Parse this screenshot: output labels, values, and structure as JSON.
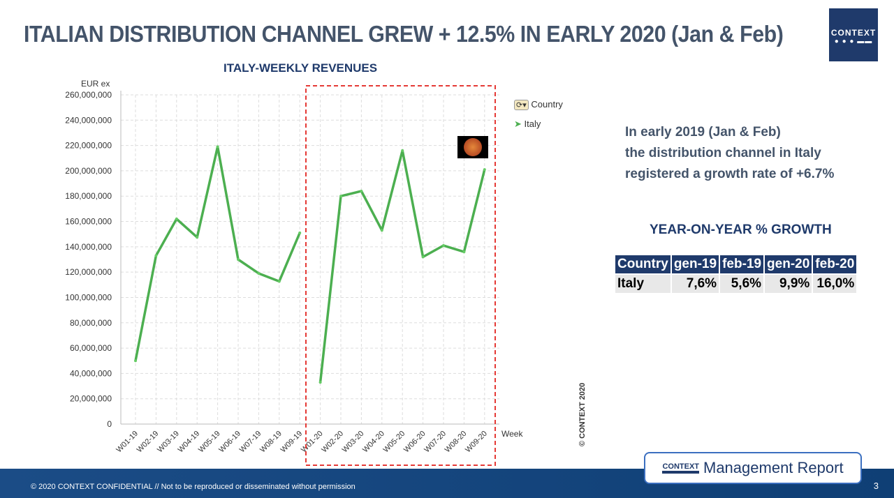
{
  "title": "ITALIAN DISTRIBUTION CHANNEL GREW + 12.5% IN EARLY 2020 (Jan & Feb)",
  "logo": "CONTEXT",
  "note": [
    "In early 2019 (Jan & Feb)",
    "the distribution channel in Italy",
    "registered a growth rate of +6.7%"
  ],
  "yoy_title": "YEAR-ON-YEAR % GROWTH",
  "table": {
    "headers": [
      "Country",
      "gen-19",
      "feb-19",
      "gen-20",
      "feb-20"
    ],
    "rows": [
      [
        "Italy",
        "7,6%",
        "5,6%",
        "9,9%",
        "16,0%"
      ]
    ]
  },
  "copyright_vertical": "© CONTEXT 2020",
  "footer": {
    "text": "© 2020 CONTEXT CONFIDENTIAL // Not to be reproduced or disseminated without permission",
    "page": "3",
    "badge_brand": "CONTEXT",
    "badge_text": "Management Report"
  },
  "legend": {
    "title": "Country",
    "items": [
      "Italy"
    ]
  },
  "colors": {
    "series": "#4caf50",
    "highlight_box": "#e53935",
    "navy": "#1f3a6b"
  },
  "chart_data": {
    "type": "line",
    "title": "ITALY-WEEKLY REVENUES",
    "ylabel": "EUR ex",
    "xlabel": "Week",
    "ylim": [
      0,
      260000000
    ],
    "grid": true,
    "legend": "right",
    "yticks": [
      "0",
      "20,000,000",
      "40,000,000",
      "60,000,000",
      "80,000,000",
      "100,000,000",
      "120,000,000",
      "140,000,000",
      "160,000,000",
      "180,000,000",
      "200,000,000",
      "220,000,000",
      "240,000,000",
      "260,000,000"
    ],
    "categories": [
      "W01-19",
      "W02-19",
      "W03-19",
      "W04-19",
      "W05-19",
      "W06-19",
      "W07-19",
      "W08-19",
      "W09-19",
      "W01-20",
      "W02-20",
      "W03-20",
      "W04-20",
      "W05-20",
      "W06-20",
      "W07-20",
      "W08-20",
      "W09-20"
    ],
    "series": [
      {
        "name": "Italy",
        "values": [
          50000000,
          133000000,
          162000000,
          147500000,
          219000000,
          130000000,
          119000000,
          112700000,
          151000000,
          33000000,
          180000000,
          184000000,
          153000000,
          216000000,
          132000000,
          141000000,
          136000000,
          201000000
        ]
      }
    ],
    "highlighted_range": [
      "W01-20",
      "W09-20"
    ]
  }
}
